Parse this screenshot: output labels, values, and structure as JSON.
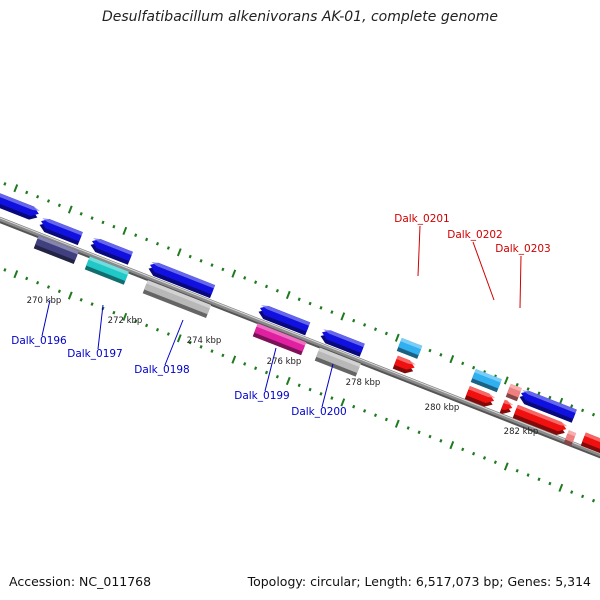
{
  "title": "Desulfatibacillum alkenivorans AK-01, complete genome",
  "footer": {
    "accession_label": "Accession:",
    "accession": "NC_011768",
    "topology_label": "Topology:",
    "topology": "circular",
    "length_label": "Length:",
    "length": "6,517,073 bp",
    "genes_label": "Genes:",
    "genes": "5,314"
  },
  "colors": {
    "backbone": "#8a8a8a",
    "tick": "#1f7a1f",
    "forward_label": "#0000c8",
    "reverse_label": "#d00000",
    "blue": "#1010e0",
    "navy": "#404080",
    "teal": "#20c8c8",
    "gray": "#b8b8b8",
    "magenta": "#e020a0",
    "skyblue": "#30b0f0",
    "red": "#f01010",
    "pink": "#f08080"
  },
  "scale_labels": [
    "270 kbp",
    "272 kbp",
    "274 kbp",
    "276 kbp",
    "278 kbp",
    "280 kbp",
    "282 kbp"
  ],
  "gene_labels_forward": [
    "Dalk_0196",
    "Dalk_0197",
    "Dalk_0198",
    "Dalk_0199",
    "Dalk_0200"
  ],
  "gene_labels_reverse": [
    "Dalk_0201",
    "Dalk_0202",
    "Dalk_0203"
  ]
}
